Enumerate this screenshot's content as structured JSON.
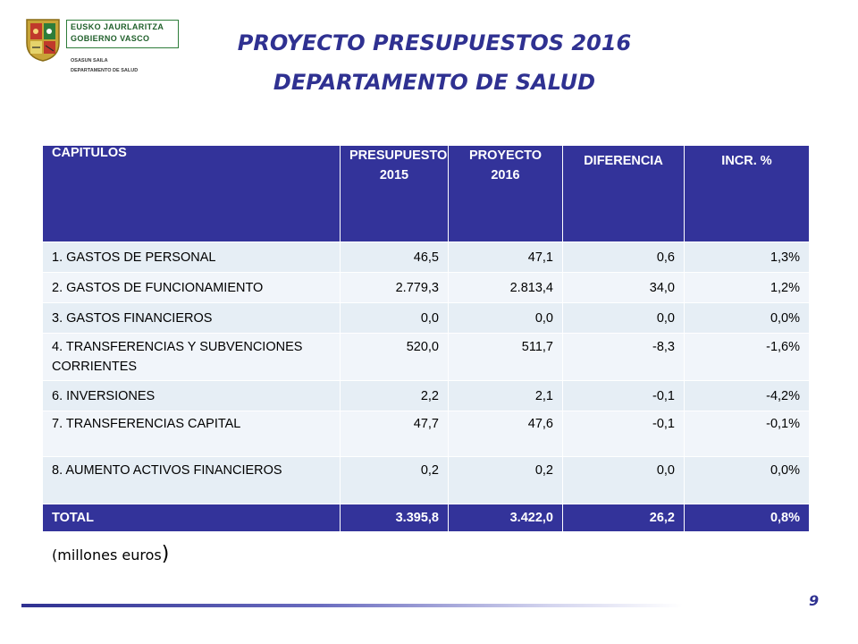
{
  "logo": {
    "line1": "EUSKO JAURLARITZA",
    "line2": "GOBIERNO VASCO",
    "dept1": "OSASUN SAILA",
    "dept2": "DEPARTAMENTO DE SALUD"
  },
  "title": "PROYECTO PRESUPUESTOS 2016",
  "subtitle": "DEPARTAMENTO DE SALUD",
  "table": {
    "headers": {
      "capitulos": "CAPITULOS",
      "presupuesto_l1": "PRESUPUESTO",
      "presupuesto_l2": "2015",
      "proyecto_l1": "PROYECTO",
      "proyecto_l2": "2016",
      "diferencia": "DIFERENCIA",
      "incr": "INCR. %"
    },
    "rows": [
      {
        "capitulo": "1. GASTOS DE PERSONAL",
        "presupuesto": "46,5",
        "proyecto": "47,1",
        "diferencia": "0,6",
        "incr": "1,3%"
      },
      {
        "capitulo": "2. GASTOS DE FUNCIONAMIENTO",
        "presupuesto": "2.779,3",
        "proyecto": "2.813,4",
        "diferencia": "34,0",
        "incr": "1,2%"
      },
      {
        "capitulo": "3. GASTOS FINANCIEROS",
        "presupuesto": "0,0",
        "proyecto": "0,0",
        "diferencia": "0,0",
        "incr": "0,0%"
      },
      {
        "capitulo": "4. TRANSFERENCIAS Y SUBVENCIONES CORRIENTES",
        "presupuesto": "520,0",
        "proyecto": "511,7",
        "diferencia": "-8,3",
        "incr": "-1,6%"
      },
      {
        "capitulo": "6. INVERSIONES",
        "presupuesto": "2,2",
        "proyecto": "2,1",
        "diferencia": "-0,1",
        "incr": "-4,2%"
      },
      {
        "capitulo": "7. TRANSFERENCIAS CAPITAL",
        "presupuesto": "47,7",
        "proyecto": "47,6",
        "diferencia": "-0,1",
        "incr": "-0,1%"
      },
      {
        "capitulo": "8. AUMENTO ACTIVOS FINANCIEROS",
        "presupuesto": "0,2",
        "proyecto": "0,2",
        "diferencia": "0,0",
        "incr": "0,0%"
      }
    ],
    "total": {
      "capitulo": "TOTAL",
      "presupuesto": "3.395,8",
      "proyecto": "3.422,0",
      "diferencia": "26,2",
      "incr": "0,8%"
    }
  },
  "note": {
    "open": "(",
    "text": "millones euros",
    "close": ")"
  },
  "page_number": "9",
  "colors": {
    "header_bg": "#33339a",
    "title": "#2f3191",
    "row_light": "#e6eef5",
    "row_lighter": "#f1f5fa"
  }
}
